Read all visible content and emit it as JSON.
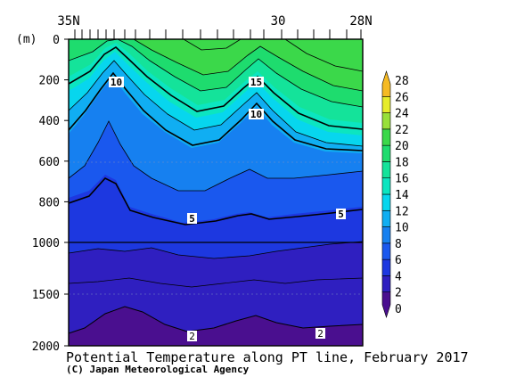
{
  "chart_data": {
    "type": "heatmap",
    "title": "Potential Temperature along PT line, February 2017",
    "credit": "(C) Japan Meteorological Agency",
    "ylabel": "(m)",
    "x_ticks": [
      "35N",
      "30",
      "28N"
    ],
    "y_ticks": [
      0,
      200,
      400,
      600,
      800,
      1000,
      1500,
      2000
    ],
    "y_axis": "depth, linear 0-1000 m then compressed 1000-2000 m",
    "ylim": [
      0,
      2000
    ],
    "colorbar": {
      "levels": [
        0,
        2,
        4,
        6,
        8,
        10,
        12,
        14,
        16,
        18,
        20,
        22,
        24,
        26,
        28
      ],
      "colors": [
        "#4a0f8f",
        "#2f1fc0",
        "#1d38e0",
        "#1a58ee",
        "#1680f0",
        "#10aef2",
        "#07d6ee",
        "#0ce5c0",
        "#14e39a",
        "#1edc6e",
        "#3bd84a",
        "#98e03a",
        "#e6ec2a",
        "#f5ba24"
      ]
    },
    "contour_labels": [
      "10",
      "15",
      "10",
      "5",
      "5",
      "2",
      "2"
    ]
  }
}
